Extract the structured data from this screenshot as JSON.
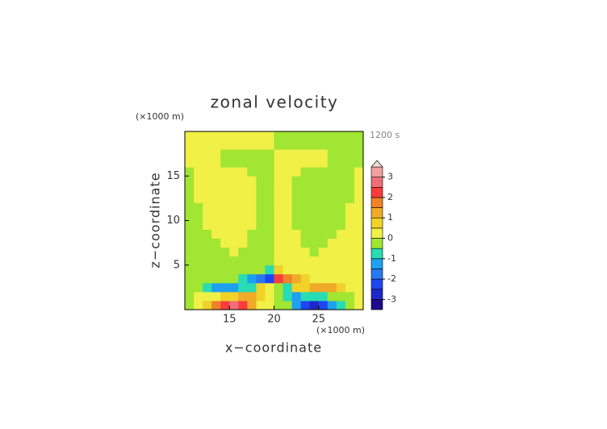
{
  "chart_data": {
    "type": "contour",
    "title": "zonal velocity",
    "time_label": "1200 s",
    "x_label": "x−coordinate",
    "y_label": "z−coordinate",
    "x_unit": "(×1000 m)",
    "y_unit": "(×1000 m)",
    "xlim": [
      10,
      30
    ],
    "ylim": [
      0,
      20
    ],
    "xticks": [
      15,
      20,
      25
    ],
    "yticks": [
      5,
      10,
      15
    ],
    "x": [
      10.5,
      11.5,
      12.5,
      13.5,
      14.5,
      15.5,
      16.5,
      17.5,
      18.5,
      19.5,
      20.5,
      21.5,
      22.5,
      23.5,
      24.5,
      25.5,
      26.5,
      27.5,
      28.5,
      29.5
    ],
    "y": [
      0.5,
      1.5,
      2.5,
      3.5,
      4.5,
      5.5,
      6.5,
      7.5,
      8.5,
      9.5,
      10.5,
      11.5,
      12.5,
      13.5,
      14.5,
      15.5,
      16.5,
      17.5,
      18.5,
      19.5
    ],
    "values": [
      [
        -0.2,
        0.3,
        0.8,
        1.5,
        2.2,
        2.6,
        2.3,
        1.4,
        0.4,
        0.1,
        -0.1,
        -0.4,
        -1.4,
        -2.3,
        -2.6,
        -2.2,
        -1.5,
        -0.8,
        -0.3,
        0.2
      ],
      [
        -0.2,
        0.2,
        0.2,
        0.4,
        0.6,
        0.8,
        1.0,
        1.1,
        0.7,
        0.2,
        -0.2,
        -0.7,
        -1.1,
        -1.0,
        -0.8,
        -0.6,
        -0.4,
        -0.2,
        -0.2,
        0.2
      ],
      [
        -0.2,
        -0.2,
        -0.6,
        -1.1,
        -1.3,
        -1.2,
        -0.9,
        -0.6,
        0.6,
        0.3,
        -0.3,
        -0.6,
        0.6,
        0.9,
        1.2,
        1.3,
        1.1,
        0.6,
        0.2,
        0.2
      ],
      [
        -0.2,
        -0.2,
        -0.2,
        -0.2,
        -0.2,
        -0.3,
        -0.6,
        -1.2,
        -1.6,
        -2.2,
        2.2,
        1.6,
        1.2,
        0.6,
        0.3,
        0.2,
        0.2,
        0.2,
        0.2,
        0.2
      ],
      [
        -0.2,
        -0.2,
        -0.2,
        -0.2,
        -0.2,
        -0.2,
        -0.2,
        -0.2,
        -0.2,
        -0.7,
        0.7,
        0.2,
        0.2,
        0.2,
        0.2,
        0.2,
        0.2,
        0.2,
        0.2,
        0.2
      ],
      [
        -0.2,
        -0.2,
        -0.2,
        -0.2,
        -0.2,
        -0.2,
        -0.2,
        -0.2,
        -0.2,
        -0.2,
        0.2,
        0.2,
        0.2,
        0.2,
        0.2,
        0.2,
        0.2,
        0.2,
        0.2,
        0.2
      ],
      [
        -0.2,
        -0.2,
        -0.2,
        -0.2,
        -0.2,
        0.2,
        -0.2,
        -0.2,
        -0.2,
        -0.2,
        0.2,
        0.2,
        0.2,
        0.2,
        -0.2,
        0.2,
        0.2,
        0.2,
        0.2,
        0.2
      ],
      [
        -0.2,
        -0.2,
        -0.2,
        -0.2,
        0.2,
        0.2,
        0.2,
        -0.2,
        -0.2,
        -0.2,
        0.2,
        0.2,
        0.2,
        -0.2,
        -0.2,
        -0.2,
        0.2,
        0.2,
        0.2,
        0.2
      ],
      [
        -0.2,
        -0.2,
        -0.2,
        0.2,
        0.2,
        0.2,
        0.2,
        -0.2,
        -0.2,
        -0.2,
        0.2,
        0.2,
        0.2,
        -0.2,
        -0.2,
        -0.2,
        -0.2,
        0.2,
        0.2,
        0.2
      ],
      [
        -0.2,
        -0.2,
        0.2,
        0.2,
        0.2,
        0.2,
        0.2,
        0.2,
        -0.2,
        -0.2,
        0.2,
        0.2,
        -0.2,
        -0.2,
        -0.2,
        -0.2,
        -0.2,
        -0.2,
        0.2,
        0.2
      ],
      [
        -0.2,
        -0.2,
        0.2,
        0.2,
        0.2,
        0.2,
        0.2,
        0.2,
        -0.2,
        -0.2,
        0.2,
        0.2,
        -0.2,
        -0.2,
        -0.2,
        -0.2,
        -0.2,
        -0.2,
        0.2,
        0.2
      ],
      [
        -0.2,
        -0.2,
        0.2,
        0.2,
        0.2,
        0.2,
        0.2,
        0.2,
        -0.2,
        -0.2,
        0.2,
        0.2,
        -0.2,
        -0.2,
        -0.2,
        -0.2,
        -0.2,
        -0.2,
        0.2,
        0.2
      ],
      [
        -0.2,
        0.2,
        0.2,
        0.2,
        0.2,
        0.2,
        0.2,
        0.2,
        -0.2,
        -0.2,
        0.2,
        0.2,
        -0.2,
        -0.2,
        -0.2,
        -0.2,
        -0.2,
        -0.2,
        -0.2,
        0.2
      ],
      [
        -0.2,
        0.2,
        0.2,
        0.2,
        0.2,
        0.2,
        0.2,
        0.2,
        -0.2,
        -0.2,
        0.2,
        0.2,
        -0.2,
        -0.2,
        -0.2,
        -0.2,
        -0.2,
        -0.2,
        -0.2,
        0.2
      ],
      [
        -0.2,
        0.2,
        0.2,
        0.2,
        0.2,
        0.2,
        0.2,
        0.2,
        -0.2,
        -0.2,
        0.2,
        0.2,
        -0.2,
        -0.2,
        -0.2,
        -0.2,
        -0.2,
        -0.2,
        -0.2,
        0.2
      ],
      [
        -0.2,
        0.2,
        0.2,
        0.2,
        0.2,
        0.2,
        0.2,
        -0.2,
        -0.2,
        -0.2,
        0.2,
        0.2,
        0.2,
        -0.2,
        -0.2,
        -0.2,
        -0.2,
        -0.2,
        -0.2,
        0.2
      ],
      [
        0.2,
        0.2,
        0.2,
        0.2,
        -0.2,
        -0.2,
        -0.2,
        -0.2,
        -0.2,
        -0.2,
        0.2,
        0.2,
        0.2,
        0.2,
        0.2,
        0.2,
        -0.2,
        -0.2,
        -0.2,
        -0.2
      ],
      [
        0.2,
        0.2,
        0.2,
        0.2,
        -0.2,
        -0.2,
        -0.2,
        -0.2,
        -0.2,
        -0.2,
        0.2,
        0.2,
        0.2,
        0.2,
        0.2,
        0.2,
        -0.2,
        -0.2,
        -0.2,
        -0.2
      ],
      [
        0.2,
        0.2,
        0.2,
        0.2,
        0.2,
        0.2,
        0.2,
        0.2,
        0.2,
        0.2,
        -0.2,
        -0.2,
        -0.2,
        -0.2,
        -0.2,
        -0.2,
        -0.2,
        -0.2,
        -0.2,
        -0.2
      ],
      [
        0.2,
        0.2,
        0.2,
        0.2,
        0.2,
        0.2,
        0.2,
        0.2,
        0.2,
        0.2,
        -0.2,
        -0.2,
        -0.2,
        -0.2,
        -0.2,
        -0.2,
        -0.2,
        -0.2,
        -0.2,
        -0.2
      ]
    ],
    "colorbar": {
      "levels": [
        -3.5,
        -3,
        -2.5,
        -2,
        -1.5,
        -1,
        -0.5,
        0,
        0.5,
        1,
        1.5,
        2,
        2.5,
        3,
        3.5
      ],
      "colors": [
        "#1e0a8c",
        "#1e28c8",
        "#1e46f0",
        "#2878f0",
        "#1ea0f0",
        "#28dcb4",
        "#a0e632",
        "#f0f046",
        "#f0d228",
        "#f0aa28",
        "#f08228",
        "#fa3c3c",
        "#f06e78",
        "#f0a0a0"
      ],
      "over_color": "#f0dcd2",
      "ticks": [
        -3,
        -2,
        -1,
        0,
        1,
        2,
        3
      ]
    }
  }
}
